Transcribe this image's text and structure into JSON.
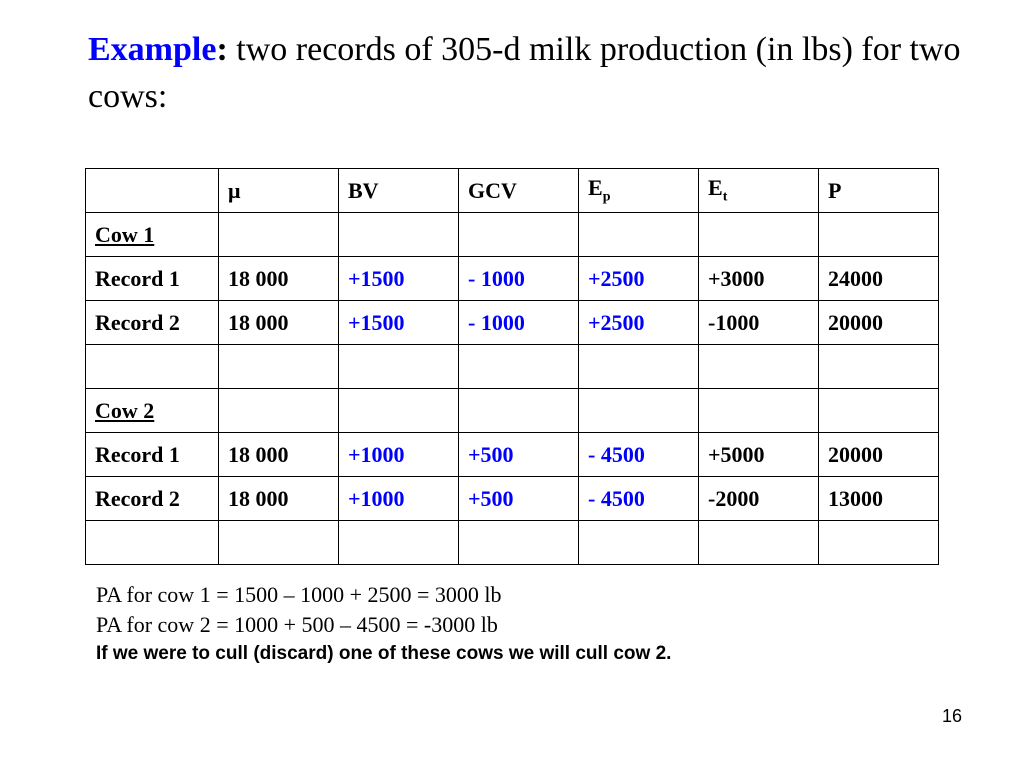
{
  "title": {
    "lead": "Example",
    "colon": ":",
    "rest": " two records of 305-d milk production (in lbs) for two cows:"
  },
  "table": {
    "headers": {
      "c0": "",
      "c1": "μ",
      "c2": "BV",
      "c3": "GCV",
      "c4_main": "E",
      "c4_sub": "p",
      "c5_main": "E",
      "c5_sub": "t",
      "c6": "P"
    },
    "cow1": {
      "label": "Cow 1",
      "r1": [
        "Record 1",
        "18 000",
        "+1500",
        "- 1000",
        "+2500",
        "+3000",
        "24000"
      ],
      "r2": [
        "Record 2",
        "18 000",
        "+1500",
        "- 1000",
        "+2500",
        "-1000",
        "20000"
      ]
    },
    "cow2": {
      "label": "Cow 2",
      "r1": [
        "Record 1",
        "18 000",
        "+1000",
        "+500",
        "- 4500",
        "+5000",
        "20000"
      ],
      "r2": [
        "Record 2",
        "18 000",
        "+1000",
        "+500",
        "- 4500",
        "-2000",
        "13000"
      ]
    }
  },
  "notes": {
    "pa_cow1": "PA for cow 1 = 1500 – 1000 + 2500 = 3000 lb",
    "pa_cow2": "PA for cow 2 = 1000 + 500 – 4500 = -3000 lb",
    "conclusion": "If we were to cull (discard) one of these cows we will cull cow 2."
  },
  "page_number": "16",
  "colors": {
    "accent": "#0000ff",
    "text": "#000000"
  }
}
